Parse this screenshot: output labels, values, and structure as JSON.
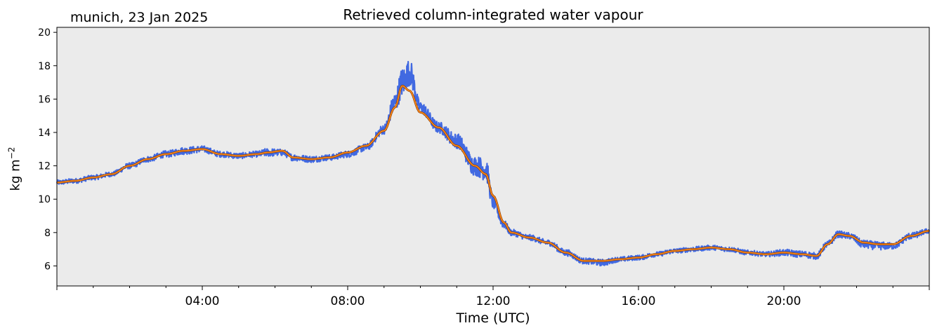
{
  "title": "Retrieved column-integrated water vapour",
  "subtitle": "munich, 23 Jan 2025",
  "colors": {
    "raw": "#4169e1",
    "smooth": "#ff8c1a",
    "smooth_edge": "#8a3a00",
    "plot_bg": "#ebebeb"
  },
  "chart_data": {
    "type": "line",
    "title": "Retrieved column-integrated water vapour",
    "xlabel": "Time (UTC)",
    "ylabel": "kg m",
    "ylabel_exponent": "−2",
    "xlim": [
      "00:00",
      "24:00"
    ],
    "ylim": [
      4.8,
      20.3
    ],
    "x_ticks": [
      "04:00",
      "08:00",
      "12:00",
      "16:00",
      "20:00"
    ],
    "y_ticks": [
      6,
      8,
      10,
      12,
      14,
      16,
      18,
      20
    ],
    "grid": false,
    "x_hours": [
      0.0,
      0.5,
      1.0,
      1.5,
      2.0,
      2.5,
      3.0,
      3.5,
      4.0,
      4.5,
      5.0,
      5.5,
      5.8,
      6.2,
      6.5,
      7.0,
      7.5,
      8.0,
      8.5,
      9.0,
      9.3,
      9.5,
      9.7,
      10.0,
      10.5,
      11.0,
      11.5,
      11.8,
      12.0,
      12.3,
      12.5,
      13.0,
      13.5,
      14.0,
      14.5,
      15.0,
      15.5,
      16.0,
      16.5,
      17.0,
      17.5,
      18.0,
      18.5,
      19.0,
      19.5,
      20.0,
      20.5,
      20.9,
      21.2,
      21.5,
      21.8,
      22.2,
      22.6,
      23.0,
      23.5,
      24.0
    ],
    "series": [
      {
        "kind": "raw",
        "values": [
          11.0,
          11.1,
          11.3,
          11.5,
          12.0,
          12.4,
          12.7,
          12.9,
          13.0,
          12.7,
          12.6,
          12.7,
          12.8,
          12.8,
          12.5,
          12.4,
          12.5,
          12.7,
          13.1,
          14.2,
          15.8,
          17.0,
          17.6,
          15.5,
          14.3,
          13.5,
          12.0,
          11.8,
          9.8,
          8.5,
          8.0,
          7.7,
          7.4,
          6.8,
          6.3,
          6.2,
          6.4,
          6.5,
          6.7,
          6.9,
          7.0,
          7.1,
          7.0,
          6.8,
          6.7,
          6.8,
          6.7,
          6.6,
          7.3,
          7.9,
          7.8,
          7.3,
          7.2,
          7.2,
          7.8,
          8.1
        ],
        "noise": [
          0.15,
          0.15,
          0.15,
          0.15,
          0.18,
          0.18,
          0.2,
          0.22,
          0.2,
          0.18,
          0.18,
          0.18,
          0.25,
          0.2,
          0.2,
          0.2,
          0.18,
          0.2,
          0.22,
          0.3,
          0.6,
          0.9,
          0.8,
          0.35,
          0.35,
          0.45,
          0.6,
          0.7,
          0.4,
          0.25,
          0.2,
          0.18,
          0.18,
          0.2,
          0.18,
          0.2,
          0.15,
          0.15,
          0.15,
          0.15,
          0.15,
          0.15,
          0.15,
          0.15,
          0.15,
          0.2,
          0.2,
          0.2,
          0.2,
          0.2,
          0.2,
          0.25,
          0.25,
          0.2,
          0.2,
          0.15
        ]
      },
      {
        "kind": "smoothed",
        "values": [
          11.0,
          11.1,
          11.3,
          11.5,
          12.0,
          12.4,
          12.7,
          12.9,
          13.0,
          12.7,
          12.6,
          12.7,
          12.8,
          12.9,
          12.5,
          12.4,
          12.5,
          12.8,
          13.2,
          14.1,
          15.5,
          16.8,
          16.5,
          15.2,
          14.3,
          13.2,
          12.0,
          11.5,
          10.2,
          8.6,
          8.0,
          7.7,
          7.4,
          6.8,
          6.3,
          6.3,
          6.4,
          6.5,
          6.7,
          6.9,
          7.0,
          7.1,
          7.0,
          6.8,
          6.7,
          6.8,
          6.7,
          6.6,
          7.3,
          7.9,
          7.8,
          7.4,
          7.3,
          7.3,
          7.8,
          8.1
        ]
      }
    ]
  }
}
